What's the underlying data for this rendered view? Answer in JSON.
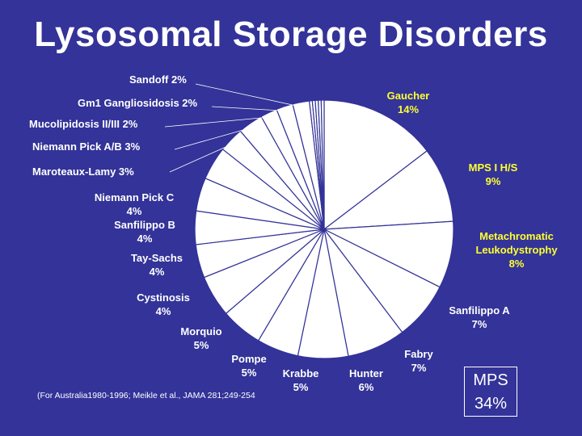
{
  "title": "Lysosomal Storage Disorders",
  "colors": {
    "background": "#333399",
    "highlight": "#ffff33",
    "text": "#ffffff",
    "slice_fill": "#ffffff",
    "slice_stroke": "#333399"
  },
  "chart_data": {
    "type": "pie",
    "title": "Lysosomal Storage Disorders",
    "unit": "%",
    "slices": [
      {
        "name": "Gaucher",
        "value": 14,
        "label": "Gaucher",
        "pct": "14%",
        "highlight": true
      },
      {
        "name": "MPS I H/S",
        "value": 9,
        "label": "MPS I H/S",
        "pct": "9%",
        "highlight": true
      },
      {
        "name": "Metachromatic Leukodystrophy",
        "value": 8,
        "label": "Metachromatic Leukodystrophy",
        "pct": "8%",
        "highlight": true
      },
      {
        "name": "Sanfilippo A",
        "value": 7,
        "label": "Sanfilippo A",
        "pct": "7%",
        "highlight": false
      },
      {
        "name": "Fabry",
        "value": 7,
        "label": "Fabry",
        "pct": "7%",
        "highlight": false
      },
      {
        "name": "Hunter",
        "value": 6,
        "label": "Hunter",
        "pct": "6%",
        "highlight": false
      },
      {
        "name": "Krabbe",
        "value": 5,
        "label": "Krabbe",
        "pct": "5%",
        "highlight": false
      },
      {
        "name": "Pompe",
        "value": 5,
        "label": "Pompe",
        "pct": "5%",
        "highlight": false
      },
      {
        "name": "Morquio",
        "value": 5,
        "label": "Morquio",
        "pct": "5%",
        "highlight": false
      },
      {
        "name": "Cystinosis",
        "value": 4,
        "label": "Cystinosis",
        "pct": "4%",
        "highlight": false
      },
      {
        "name": "Tay-Sachs",
        "value": 4,
        "label": "Tay-Sachs",
        "pct": "4%",
        "highlight": false
      },
      {
        "name": "Sanfilippo B",
        "value": 4,
        "label": "Sanfilippo B",
        "pct": "4%",
        "highlight": false
      },
      {
        "name": "Niemann Pick C",
        "value": 4,
        "label": "Niemann Pick C",
        "pct": "4%",
        "highlight": false
      },
      {
        "name": "Maroteaux-Lamy",
        "value": 3,
        "label": "Maroteaux-Lamy 3%",
        "highlight": false
      },
      {
        "name": "Niemann Pick A/B",
        "value": 3,
        "label": "Niemann Pick A/B 3%",
        "highlight": false
      },
      {
        "name": "Mucolipidosis II/III",
        "value": 2,
        "label": "Mucolipidosis II/III 2%",
        "highlight": false
      },
      {
        "name": "Gm1 Gangliosidosis",
        "value": 2,
        "label": "Gm1 Gangliosidosis 2%",
        "highlight": false
      },
      {
        "name": "Sandoff",
        "value": 2,
        "label": "Sandoff 2%",
        "highlight": false
      }
    ],
    "minor_unlabeled_slices": 5
  },
  "citation": "(For Australia1980-1996; Meikle et al., JAMA 281;249-254",
  "mps_box": {
    "line1": "MPS",
    "line2": "34%"
  }
}
